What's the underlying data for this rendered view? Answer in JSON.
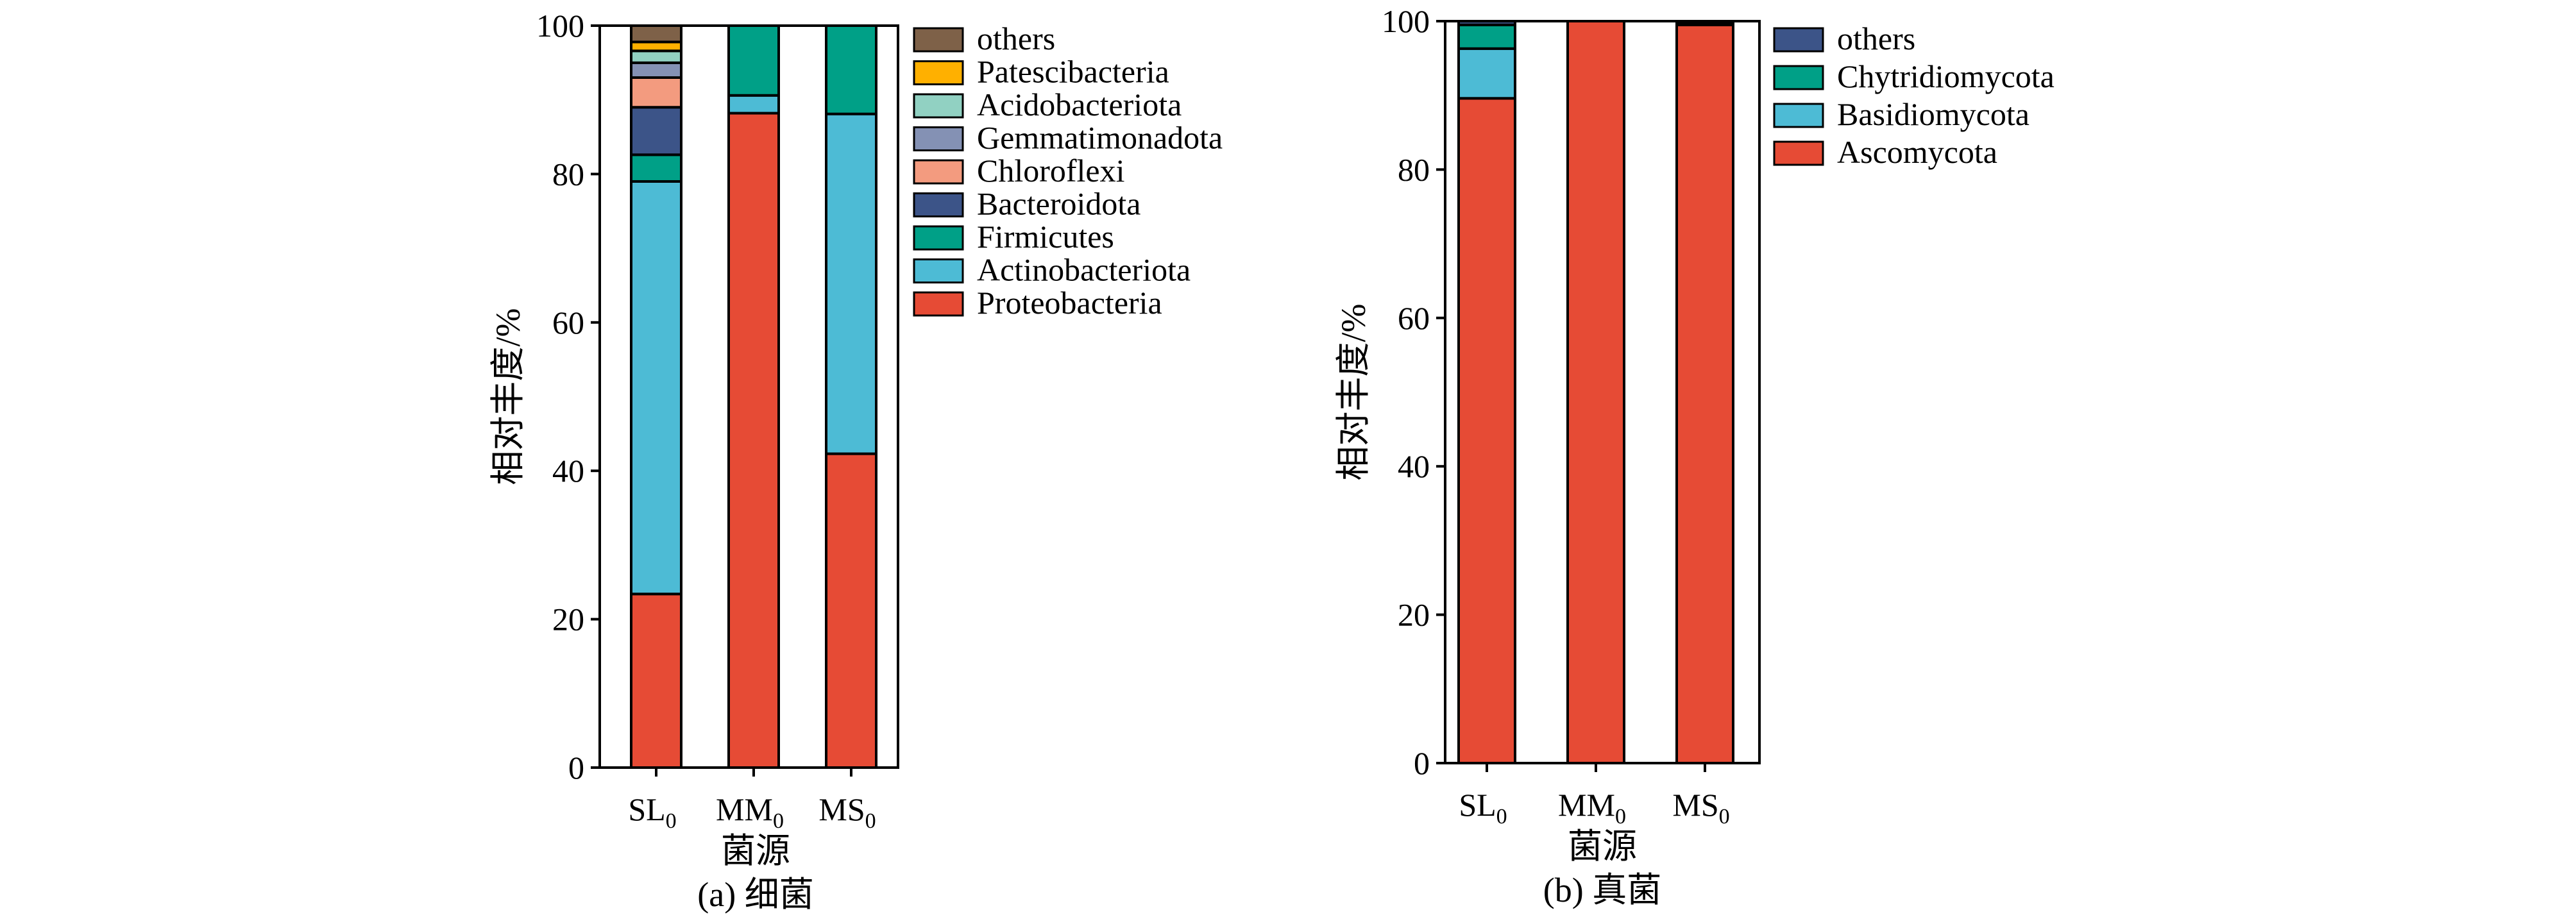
{
  "chart_data": [
    {
      "type": "bar",
      "stacked": true,
      "caption": "(a) 细菌",
      "xlabel": "菌源",
      "ylabel": "相对丰度/%",
      "ylim": [
        0,
        100
      ],
      "yticks": [
        0,
        20,
        40,
        60,
        80,
        100
      ],
      "categories": [
        {
          "base": "SL",
          "sub": "0"
        },
        {
          "base": "MM",
          "sub": "0"
        },
        {
          "base": "MS",
          "sub": "0"
        }
      ],
      "legend_position": "right",
      "series": [
        {
          "name": "Proteobacteria",
          "color": "#E64B35",
          "values": [
            23.4,
            88.2,
            42.3
          ]
        },
        {
          "name": "Actinobacteriota",
          "color": "#4DBBD5",
          "values": [
            55.6,
            2.4,
            45.8
          ]
        },
        {
          "name": "Firmicutes",
          "color": "#00A087",
          "values": [
            3.6,
            9.4,
            11.9
          ]
        },
        {
          "name": "Bacteroidota",
          "color": "#3C5488",
          "values": [
            6.4,
            0,
            0
          ]
        },
        {
          "name": "Chloroflexi",
          "color": "#F39B7F",
          "values": [
            4.0,
            0,
            0
          ]
        },
        {
          "name": "Gemmatimonadota",
          "color": "#8491B4",
          "values": [
            2.0,
            0,
            0
          ]
        },
        {
          "name": "Acidobacteriota",
          "color": "#91D1C2",
          "values": [
            1.6,
            0,
            0
          ]
        },
        {
          "name": "Patescibacteria",
          "color": "#FFB000",
          "values": [
            1.2,
            0,
            0
          ]
        },
        {
          "name": "others",
          "color": "#7E6148",
          "values": [
            2.2,
            0,
            0
          ]
        }
      ]
    },
    {
      "type": "bar",
      "stacked": true,
      "caption": "(b) 真菌",
      "xlabel": "菌源",
      "ylabel": "相对丰度/%",
      "ylim": [
        0,
        100
      ],
      "yticks": [
        0,
        20,
        40,
        60,
        80,
        100
      ],
      "categories": [
        {
          "base": "SL",
          "sub": "0"
        },
        {
          "base": "MM",
          "sub": "0"
        },
        {
          "base": "MS",
          "sub": "0"
        }
      ],
      "legend_position": "right",
      "series": [
        {
          "name": "Ascomycota",
          "color": "#E64B35",
          "values": [
            89.6,
            100,
            99.5
          ]
        },
        {
          "name": "Basidiomycota",
          "color": "#4DBBD5",
          "values": [
            6.7,
            0,
            0
          ]
        },
        {
          "name": "Chytridiomycota",
          "color": "#00A087",
          "values": [
            3.2,
            0,
            0.2
          ]
        },
        {
          "name": "others",
          "color": "#3C5488",
          "values": [
            0.5,
            0,
            0.3
          ]
        }
      ]
    }
  ]
}
